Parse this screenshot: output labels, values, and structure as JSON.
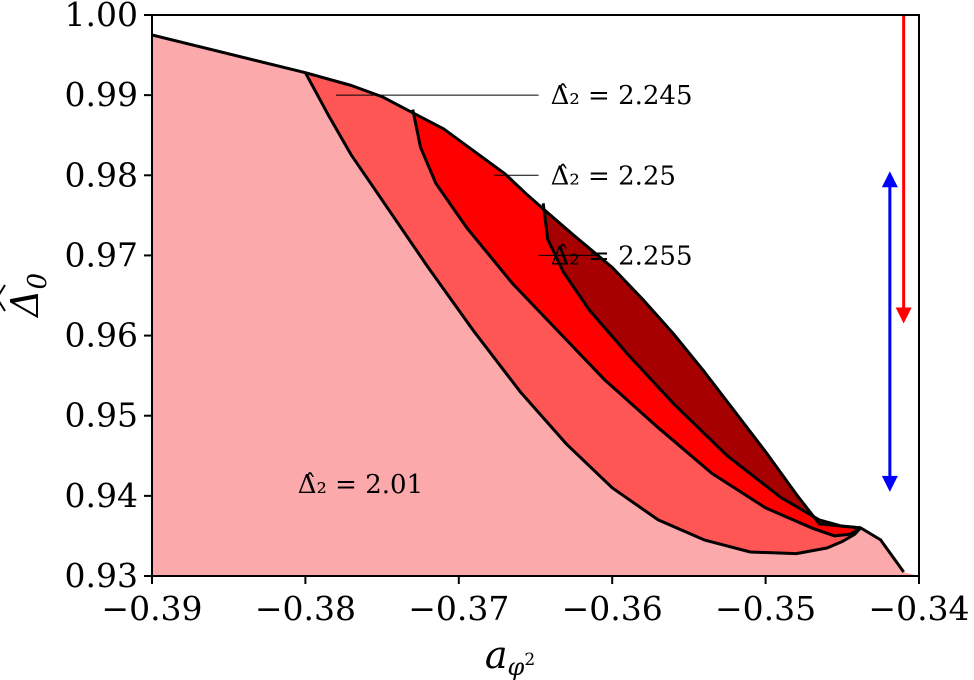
{
  "chart_data": {
    "type": "area",
    "xlabel": "a_{φ²}",
    "ylabel": "Δ̂₀",
    "xlim": [
      -0.39,
      -0.34
    ],
    "ylim": [
      0.93,
      1.0
    ],
    "xticks": [
      -0.39,
      -0.38,
      -0.37,
      -0.36,
      -0.35,
      -0.34
    ],
    "xtick_labels": [
      "−0.39",
      "−0.38",
      "−0.37",
      "−0.36",
      "−0.35",
      "−0.34"
    ],
    "yticks": [
      0.93,
      0.94,
      0.95,
      0.96,
      0.97,
      0.98,
      0.99,
      1.0
    ],
    "ytick_labels": [
      "0.93",
      "0.94",
      "0.95",
      "0.96",
      "0.97",
      "0.98",
      "0.99",
      "1.00"
    ],
    "upper_boundary": [
      [
        -0.39,
        0.9975
      ],
      [
        -0.38,
        0.9928
      ],
      [
        -0.377,
        0.9912
      ],
      [
        -0.375,
        0.9898
      ],
      [
        -0.373,
        0.9878
      ],
      [
        -0.371,
        0.9858
      ],
      [
        -0.369,
        0.983
      ],
      [
        -0.367,
        0.9802
      ],
      [
        -0.3655,
        0.9775
      ],
      [
        -0.3645,
        0.9758
      ],
      [
        -0.3625,
        0.9725
      ],
      [
        -0.36,
        0.9685
      ],
      [
        -0.358,
        0.9645
      ],
      [
        -0.356,
        0.9602
      ],
      [
        -0.354,
        0.9555
      ],
      [
        -0.352,
        0.9505
      ],
      [
        -0.35,
        0.9455
      ],
      [
        -0.348,
        0.9402
      ],
      [
        -0.3465,
        0.9365
      ],
      [
        -0.3438,
        0.936
      ],
      [
        -0.3425,
        0.9345
      ],
      [
        -0.341,
        0.9305
      ]
    ],
    "regions": [
      {
        "name": "Δ̂₂ = 2.01",
        "color": "#fca9ab",
        "boundary": [
          [
            -0.39,
            0.9975
          ],
          [
            -0.39,
            0.93
          ],
          [
            -0.341,
            0.93
          ]
        ]
      },
      {
        "name": "Δ̂₂ = 2.245",
        "color": "#fe5555",
        "boundary": [
          [
            -0.38,
            0.9928
          ],
          [
            -0.3785,
            0.9875
          ],
          [
            -0.377,
            0.9825
          ],
          [
            -0.3745,
            0.9755
          ],
          [
            -0.372,
            0.9685
          ],
          [
            -0.369,
            0.9605
          ],
          [
            -0.366,
            0.953
          ],
          [
            -0.363,
            0.9465
          ],
          [
            -0.36,
            0.941
          ],
          [
            -0.357,
            0.937
          ],
          [
            -0.354,
            0.9345
          ],
          [
            -0.351,
            0.933
          ],
          [
            -0.348,
            0.9328
          ],
          [
            -0.346,
            0.9335
          ],
          [
            -0.345,
            0.9343
          ],
          [
            -0.3442,
            0.9352
          ],
          [
            -0.3438,
            0.936
          ]
        ]
      },
      {
        "name": "Δ̂₂ = 2.25",
        "color": "#fe0000",
        "boundary": [
          [
            -0.373,
            0.9882
          ],
          [
            -0.3725,
            0.9835
          ],
          [
            -0.3715,
            0.979
          ],
          [
            -0.3695,
            0.9735
          ],
          [
            -0.3665,
            0.9665
          ],
          [
            -0.3635,
            0.9605
          ],
          [
            -0.3605,
            0.9545
          ],
          [
            -0.357,
            0.9485
          ],
          [
            -0.3535,
            0.9428
          ],
          [
            -0.35,
            0.9385
          ],
          [
            -0.347,
            0.936
          ],
          [
            -0.3455,
            0.935
          ],
          [
            -0.3445,
            0.9352
          ],
          [
            -0.3438,
            0.936
          ]
        ]
      },
      {
        "name": "Δ̂₂ = 2.255",
        "color": "#a60000",
        "boundary": [
          [
            -0.3645,
            0.9765
          ],
          [
            -0.3642,
            0.972
          ],
          [
            -0.3632,
            0.968
          ],
          [
            -0.3615,
            0.9632
          ],
          [
            -0.359,
            0.9577
          ],
          [
            -0.356,
            0.9515
          ],
          [
            -0.3525,
            0.945
          ],
          [
            -0.349,
            0.9398
          ],
          [
            -0.3465,
            0.937
          ],
          [
            -0.345,
            0.9362
          ],
          [
            -0.3438,
            0.936
          ]
        ]
      }
    ],
    "annotations": [
      {
        "text": "Δ̂₂ = 2.245",
        "line_from": [
          -0.378,
          0.99
        ],
        "line_to": [
          -0.3648,
          0.99
        ]
      },
      {
        "text": "Δ̂₂ = 2.25",
        "line_from": [
          -0.3677,
          0.98
        ],
        "line_to": [
          -0.3648,
          0.98
        ]
      },
      {
        "text": "Δ̂₂ = 2.255",
        "line_from": [
          -0.361,
          0.97
        ],
        "line_to": [
          -0.3648,
          0.97
        ]
      },
      {
        "text": "Δ̂₂ = 2.01",
        "at": [
          -0.3805,
          0.9415
        ]
      }
    ],
    "arrows": [
      {
        "color": "#ff0000",
        "x": -0.341,
        "from": 1.0,
        "to": 0.9615,
        "heads": "end"
      },
      {
        "color": "#0000ff",
        "x": -0.3419,
        "from": 0.9805,
        "to": 0.9405,
        "heads": "both"
      }
    ]
  }
}
